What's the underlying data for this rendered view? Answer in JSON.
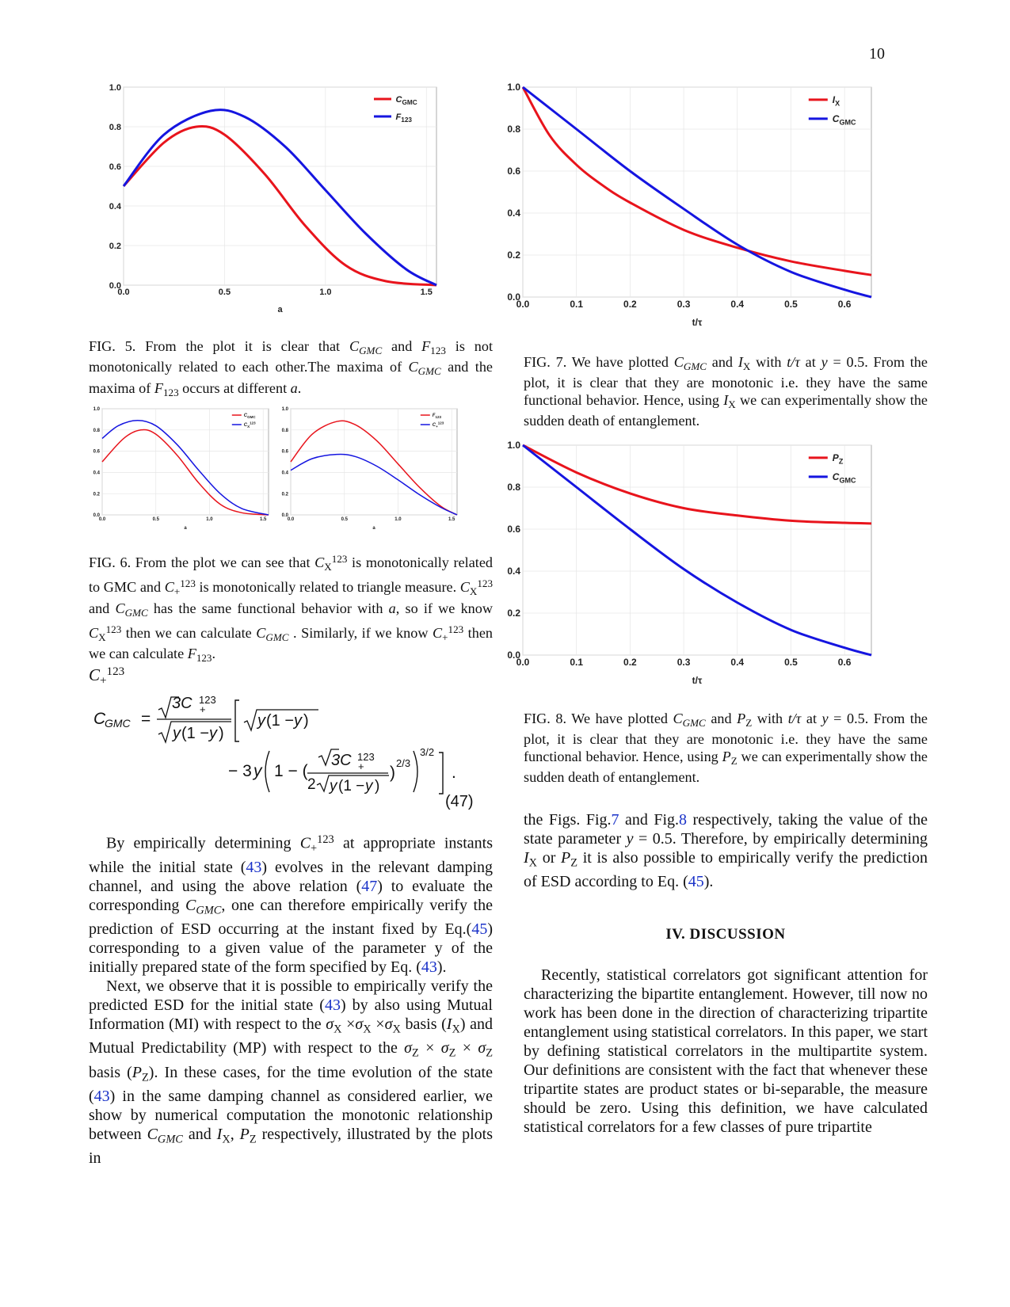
{
  "page_number": "10",
  "figures": {
    "fig5": {
      "caption_lead": "FIG. 5.",
      "caption_parts": [
        " From the plot it is clear that ",
        " and ",
        " is not monotonically related to each other.The maxima of ",
        " and the maxima of ",
        " occurs at different ",
        "."
      ],
      "legend": [
        "C",
        "F"
      ],
      "legend_sub": [
        "GMC",
        "123"
      ]
    },
    "fig6": {
      "caption_lead": "FIG. 6.",
      "caption_parts": [
        " From the plot we can see that ",
        " is monotonically related to GMC and ",
        " is monotonically related to triangle measure. ",
        " and ",
        " has the same functional behavior with ",
        ", so if we know ",
        " then we can calculate ",
        " . Similarly, if we know ",
        " then we can calculate ",
        "."
      ]
    },
    "fig7": {
      "caption_lead": "FIG. 7.",
      "caption_parts": [
        " We have plotted ",
        " and ",
        " with ",
        " at ",
        ". From the plot, it is clear that they are monotonic i.e. they have the same functional behavior. Hence, using ",
        " we can experimentally show the sudden death of entanglement."
      ]
    },
    "fig8": {
      "caption_lead": "FIG. 8.",
      "caption_parts": [
        " We have plotted ",
        " and ",
        " with ",
        " at ",
        ". From the plot, it is clear that they are monotonic i.e. they have the same functional behavior. Hence, using ",
        " we can experimentally show the sudden death of entanglement."
      ]
    }
  },
  "chart_data": [
    {
      "id": "fig5",
      "type": "line",
      "xlabel": "a",
      "ylabel": "",
      "xlim": [
        0,
        1.55
      ],
      "ylim": [
        0,
        1.0
      ],
      "x_ticks": [
        "0.0",
        "0.5",
        "1.0",
        "1.5"
      ],
      "y_ticks": [
        "0.0",
        "0.2",
        "0.4",
        "0.6",
        "0.8",
        "1.0"
      ],
      "legend_position": "top-right",
      "series": [
        {
          "name": "C_GMC",
          "color": "#e8141c",
          "x": [
            0,
            0.2,
            0.36,
            0.5,
            0.7,
            0.9,
            1.1,
            1.3,
            1.55
          ],
          "y": [
            0.5,
            0.72,
            0.8,
            0.76,
            0.56,
            0.3,
            0.1,
            0.02,
            0.0
          ]
        },
        {
          "name": "F_123",
          "color": "#1515e0",
          "x": [
            0,
            0.2,
            0.43,
            0.6,
            0.8,
            1.0,
            1.2,
            1.4,
            1.55
          ],
          "y": [
            0.5,
            0.76,
            0.88,
            0.85,
            0.7,
            0.48,
            0.26,
            0.08,
            0.0
          ]
        }
      ]
    },
    {
      "id": "fig6-left",
      "type": "line",
      "xlabel": "a",
      "ylabel": "",
      "xlim": [
        0,
        1.55
      ],
      "ylim": [
        0,
        1.0
      ],
      "x_ticks": [
        "0.0",
        "0.5",
        "1.0",
        "1.5"
      ],
      "y_ticks": [
        "0.0",
        "0.2",
        "0.4",
        "0.6",
        "0.8",
        "1.0"
      ],
      "legend_position": "top-right",
      "series": [
        {
          "name": "C_GMC",
          "color": "#e8141c",
          "x": [
            0,
            0.2,
            0.36,
            0.5,
            0.7,
            0.9,
            1.1,
            1.3,
            1.55
          ],
          "y": [
            0.5,
            0.72,
            0.8,
            0.76,
            0.56,
            0.3,
            0.1,
            0.02,
            0.0
          ]
        },
        {
          "name": "C_X^123",
          "color": "#1515e0",
          "x": [
            0,
            0.15,
            0.33,
            0.5,
            0.7,
            0.9,
            1.1,
            1.3,
            1.55
          ],
          "y": [
            0.72,
            0.84,
            0.89,
            0.84,
            0.66,
            0.42,
            0.2,
            0.06,
            0.0
          ]
        }
      ]
    },
    {
      "id": "fig6-right",
      "type": "line",
      "xlabel": "a",
      "ylabel": "",
      "xlim": [
        0,
        1.55
      ],
      "ylim": [
        0,
        1.0
      ],
      "x_ticks": [
        "0.0",
        "0.5",
        "1.0",
        "1.5"
      ],
      "y_ticks": [
        "0.0",
        "0.2",
        "0.4",
        "0.6",
        "0.8",
        "1.0"
      ],
      "legend_position": "top-right",
      "series": [
        {
          "name": "F_123",
          "color": "#e8141c",
          "x": [
            0,
            0.2,
            0.43,
            0.6,
            0.8,
            1.0,
            1.2,
            1.4,
            1.55
          ],
          "y": [
            0.5,
            0.76,
            0.88,
            0.85,
            0.7,
            0.48,
            0.26,
            0.08,
            0.0
          ]
        },
        {
          "name": "C_+^123",
          "color": "#1515e0",
          "x": [
            0,
            0.2,
            0.43,
            0.6,
            0.8,
            1.0,
            1.2,
            1.4,
            1.55
          ],
          "y": [
            0.42,
            0.53,
            0.57,
            0.55,
            0.46,
            0.33,
            0.19,
            0.07,
            0.0
          ]
        }
      ]
    },
    {
      "id": "fig7",
      "type": "line",
      "xlabel": "t/τ",
      "ylabel": "",
      "xlim": [
        0,
        0.65
      ],
      "ylim": [
        0,
        1.0
      ],
      "x_ticks": [
        "0.0",
        "0.1",
        "0.2",
        "0.3",
        "0.4",
        "0.5",
        "0.6"
      ],
      "y_ticks": [
        "0.0",
        "0.2",
        "0.4",
        "0.6",
        "0.8",
        "1.0"
      ],
      "legend_position": "top-right",
      "series": [
        {
          "name": "I_X",
          "color": "#e8141c",
          "x": [
            0,
            0.05,
            0.1,
            0.15,
            0.2,
            0.3,
            0.4,
            0.5,
            0.6,
            0.65
          ],
          "y": [
            1.0,
            0.77,
            0.63,
            0.53,
            0.45,
            0.32,
            0.235,
            0.17,
            0.125,
            0.105
          ]
        },
        {
          "name": "C_GMC",
          "color": "#1515e0",
          "x": [
            0,
            0.1,
            0.2,
            0.3,
            0.4,
            0.5,
            0.6,
            0.65
          ],
          "y": [
            1.0,
            0.8,
            0.6,
            0.42,
            0.25,
            0.12,
            0.035,
            0.0
          ]
        }
      ]
    },
    {
      "id": "fig8",
      "type": "line",
      "xlabel": "t/τ",
      "ylabel": "",
      "xlim": [
        0,
        0.65
      ],
      "ylim": [
        0,
        1.0
      ],
      "x_ticks": [
        "0.0",
        "0.1",
        "0.2",
        "0.3",
        "0.4",
        "0.5",
        "0.6"
      ],
      "y_ticks": [
        "0.0",
        "0.2",
        "0.4",
        "0.6",
        "0.8",
        "1.0"
      ],
      "legend_position": "top-right",
      "series": [
        {
          "name": "P_Z",
          "color": "#e8141c",
          "x": [
            0,
            0.1,
            0.2,
            0.3,
            0.4,
            0.5,
            0.6,
            0.65
          ],
          "y": [
            1.0,
            0.87,
            0.77,
            0.7,
            0.665,
            0.64,
            0.63,
            0.627
          ]
        },
        {
          "name": "C_GMC",
          "color": "#1515e0",
          "x": [
            0,
            0.1,
            0.2,
            0.3,
            0.4,
            0.5,
            0.6,
            0.65
          ],
          "y": [
            1.0,
            0.8,
            0.6,
            0.41,
            0.25,
            0.12,
            0.035,
            0.0
          ]
        }
      ]
    }
  ],
  "equation": {
    "lhs": "C",
    "lhs_sub": "GMC",
    "number": "(47)",
    "lone_symbol": "C",
    "lone_sub": "+",
    "lone_sup": "123"
  },
  "left_paragraphs": {
    "p1": [
      "By empirically determining ",
      " at appropriate instants while the initial state (",
      "43",
      ") evolves in the relevant damping channel, and using the above relation (",
      "47",
      ") to evaluate the corresponding ",
      ", one can therefore empirically verify the prediction of ESD occurring at the instant fixed by Eq.(",
      "45",
      ") corresponding to a given value of the parameter y of the initially prepared state of the form specified by Eq. (",
      "43",
      ")."
    ],
    "p2": [
      "Next, we observe that it is possible to empirically verify the predicted ESD for the initial state (",
      "43",
      ") by also using Mutual Information (MI) with respect to the ",
      " basis (",
      ") and Mutual Predictability (MP) with respect to the ",
      " basis (",
      "). In these cases, for the time evolution of the state (",
      "43",
      ") in the same damping channel as considered earlier, we show by numerical computation the monotonic relationship between ",
      " and ",
      ", ",
      " respectively, illustrated by the plots in"
    ]
  },
  "right_paragraphs": {
    "p1": [
      "the Figs. Fig.",
      "7",
      " and Fig.",
      "8",
      " respectively, taking the value of the state parameter ",
      " = 0.5. Therefore, by empirically determining ",
      " or ",
      " it is also possible to empirically verify the prediction of ESD according to Eq. (",
      "45",
      ")."
    ],
    "heading": "IV.   DISCUSSION",
    "p2": "Recently, statistical correlators got significant attention for characterizing the bipartite entanglement. However, till now no work has been done in the direction of characterizing tripartite entanglement using statistical correlators. In this paper, we start by defining statistical correlators in the multipartite system. Our definitions are consistent with the fact that whenever these tripartite states are product states or bi-separable, the measure should be zero. Using this definition, we have calculated statistical correlators for a few classes of pure tripartite"
  }
}
